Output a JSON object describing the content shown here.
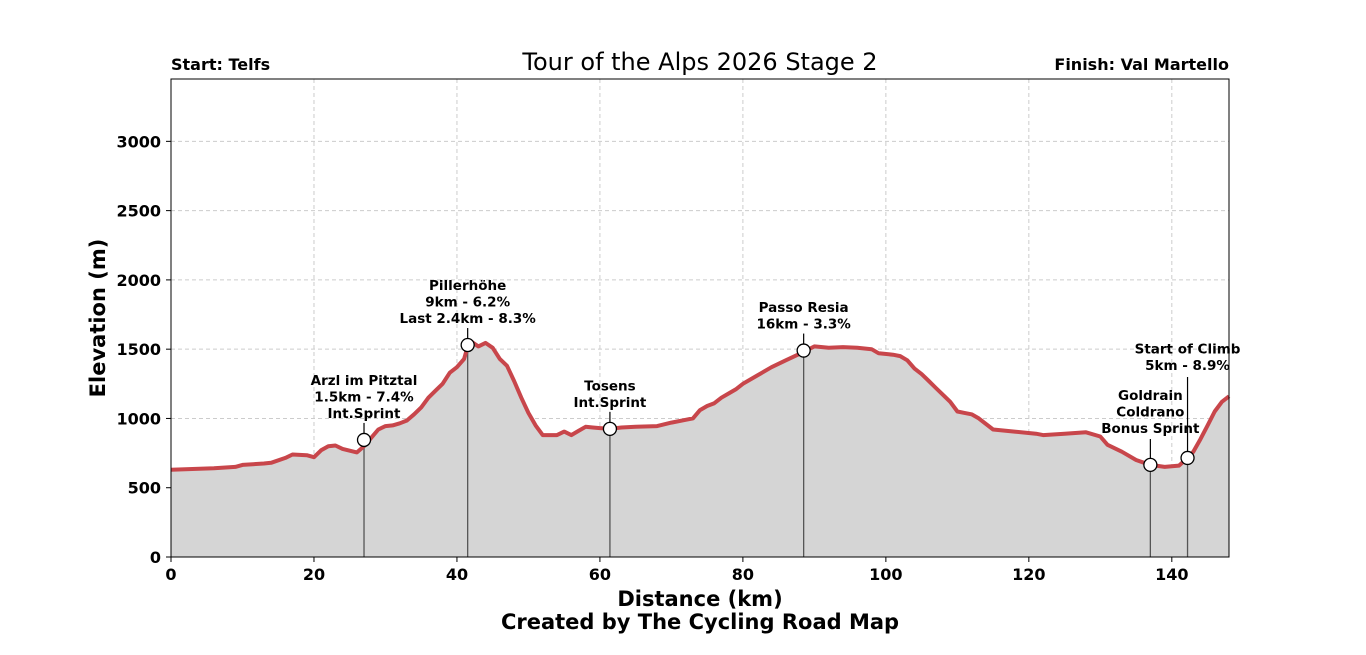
{
  "header": {
    "title": "Tour of the Alps 2026 Stage 2",
    "start_label": "Start: Telfs",
    "finish_label": "Finish: Val Martello"
  },
  "axes": {
    "xlabel": "Distance (km)",
    "ylabel": "Elevation (m)",
    "credit": "Created by The Cycling Road Map"
  },
  "colors": {
    "line": "#c8464b",
    "fill": "#d5d5d5",
    "grid": "#cccccc"
  },
  "chart_data": {
    "type": "area",
    "title": "Tour of the Alps 2026 Stage 2",
    "xlabel": "Distance (km)",
    "ylabel": "Elevation (m)",
    "xlim": [
      0,
      148
    ],
    "ylim": [
      0,
      3450
    ],
    "xticks": [
      0,
      20,
      40,
      60,
      80,
      100,
      120,
      140
    ],
    "yticks": [
      0,
      500,
      1000,
      1500,
      2000,
      2500,
      3000
    ],
    "grid": true,
    "x": [
      0,
      3,
      6,
      9,
      10,
      13,
      14,
      16,
      17,
      19,
      20,
      21,
      22,
      23,
      24,
      26,
      27,
      28,
      29,
      30,
      31,
      32,
      33,
      34,
      35,
      36,
      37,
      38,
      39,
      40,
      41,
      41.5,
      42,
      43,
      44,
      45,
      46,
      47,
      48,
      49,
      50,
      51,
      52,
      54,
      55,
      56,
      57,
      58,
      59,
      60,
      61.4,
      63,
      65,
      68,
      70,
      72,
      73,
      74,
      75,
      76,
      77,
      78,
      79,
      80,
      82,
      84,
      86,
      88.5,
      90,
      92,
      94,
      96,
      98,
      99,
      101,
      102,
      103,
      104,
      105,
      106,
      107,
      108,
      109,
      110,
      111,
      112,
      113,
      115,
      118,
      121,
      122,
      125,
      128,
      130,
      131,
      133,
      135,
      137,
      139,
      141,
      142.2,
      143,
      144,
      145,
      146,
      147,
      148
    ],
    "y": [
      630,
      635,
      640,
      650,
      665,
      675,
      680,
      715,
      740,
      735,
      720,
      770,
      800,
      805,
      780,
      755,
      800,
      860,
      920,
      945,
      950,
      965,
      985,
      1030,
      1080,
      1150,
      1200,
      1250,
      1330,
      1370,
      1430,
      1520,
      1555,
      1520,
      1545,
      1510,
      1430,
      1380,
      1270,
      1150,
      1040,
      950,
      880,
      880,
      905,
      880,
      910,
      940,
      935,
      930,
      925,
      935,
      940,
      945,
      970,
      990,
      1000,
      1060,
      1090,
      1110,
      1150,
      1180,
      1210,
      1250,
      1310,
      1370,
      1420,
      1480,
      1520,
      1510,
      1515,
      1510,
      1500,
      1470,
      1460,
      1450,
      1420,
      1360,
      1320,
      1270,
      1220,
      1170,
      1120,
      1050,
      1040,
      1030,
      1000,
      920,
      905,
      890,
      880,
      890,
      900,
      870,
      810,
      760,
      700,
      665,
      650,
      660,
      715,
      760,
      850,
      950,
      1050,
      1120,
      1160
    ],
    "annotations": [
      {
        "name": "Arzl im Pitztal",
        "x": 27,
        "y": 845,
        "lines": [
          "Arzl im Pitztal",
          "1.5km - 7.4%",
          "Int.Sprint"
        ]
      },
      {
        "name": "Pillerhöhe",
        "x": 41.5,
        "y": 1530,
        "lines": [
          "Pillerhöhe",
          "9km - 6.2%",
          "Last 2.4km - 8.3%"
        ]
      },
      {
        "name": "Tosens",
        "x": 61.4,
        "y": 925,
        "lines": [
          "Tosens",
          "Int.Sprint"
        ]
      },
      {
        "name": "Passo Resia",
        "x": 88.5,
        "y": 1490,
        "lines": [
          "Passo Resia",
          "16km - 3.3%"
        ]
      },
      {
        "name": "Goldrain Coldrano",
        "x": 137,
        "y": 665,
        "lines": [
          "Goldrain",
          "Coldrano",
          "Bonus Sprint"
        ]
      },
      {
        "name": "Start of Climb",
        "x": 142.2,
        "y": 715,
        "lines": [
          "Start of Climb",
          "5km - 8.9%"
        ]
      }
    ]
  }
}
